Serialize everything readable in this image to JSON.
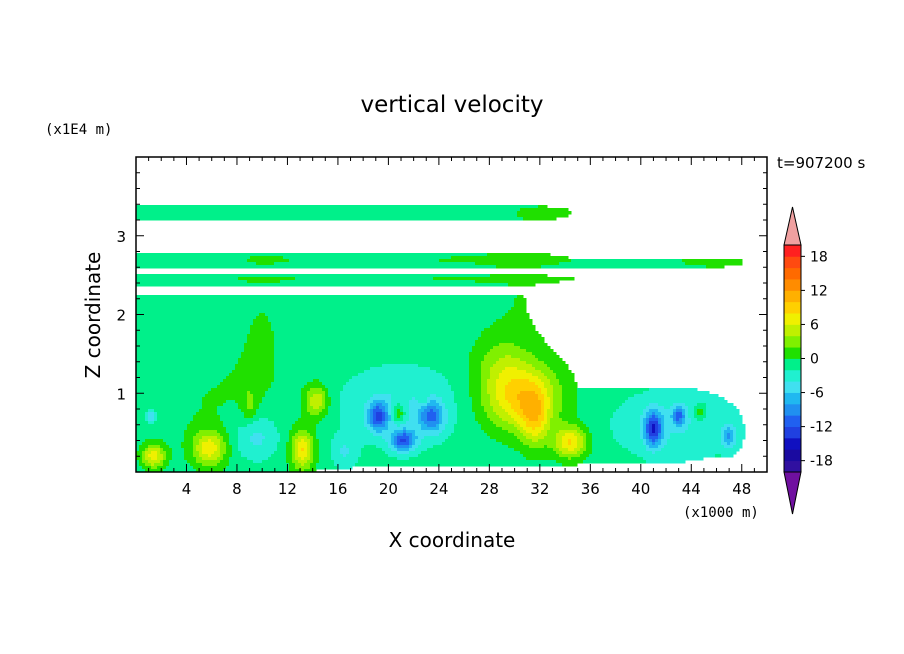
{
  "chart_data": {
    "type": "heatmap",
    "title": "vertical velocity",
    "xlabel": "X coordinate",
    "ylabel": "Z coordinate",
    "x_unit": "(x1000 m)",
    "y_unit": "(x1E4 m)",
    "time_label": "t=907200 s",
    "xlim": [
      0,
      50
    ],
    "ylim": [
      0,
      4
    ],
    "x_ticks": [
      4,
      8,
      12,
      16,
      20,
      24,
      28,
      32,
      36,
      40,
      44,
      48
    ],
    "x_tick_labels": [
      "4",
      "8",
      "12",
      "16",
      "20",
      "24",
      "28",
      "32",
      "36",
      "40",
      "44",
      "48"
    ],
    "y_ticks": [
      1,
      2,
      3
    ],
    "y_tick_labels": [
      "1",
      "2",
      "3"
    ],
    "colorbar": {
      "min": -20,
      "max": 20,
      "step": 2,
      "tick_values": [
        18,
        12,
        6,
        0,
        -6,
        -12,
        -18
      ],
      "tick_labels": [
        "18",
        "12",
        "6",
        "0",
        "-6",
        "-12",
        "-18"
      ],
      "colors_high_to_low": [
        "#f0a0a0",
        "#ff2020",
        "#ff4a10",
        "#ff6a00",
        "#ff8c00",
        "#ffb000",
        "#ffd000",
        "#f0f000",
        "#c0f000",
        "#80f000",
        "#20e000",
        "#00f08a",
        "#20f0d0",
        "#40e0f0",
        "#20b8f0",
        "#2090f0",
        "#2060f0",
        "#2040e0",
        "#1010c0",
        "#1a0aa0",
        "#3010a0",
        "#7010a0"
      ]
    },
    "background_value": -1,
    "blobs": [
      {
        "x": 30.5,
        "z": 0.95,
        "sx": 3.0,
        "sz": 0.42,
        "v": 10
      },
      {
        "x": 31.6,
        "z": 0.65,
        "sx": 1.1,
        "sz": 0.35,
        "v": 6
      },
      {
        "x": 34.4,
        "z": 0.38,
        "sx": 1.3,
        "sz": 0.2,
        "v": 9
      },
      {
        "x": 29.0,
        "z": 1.4,
        "sx": 2.2,
        "sz": 0.35,
        "v": 3
      },
      {
        "x": 1.4,
        "z": 0.2,
        "sx": 0.9,
        "sz": 0.15,
        "v": 8
      },
      {
        "x": 5.8,
        "z": 0.3,
        "sx": 1.3,
        "sz": 0.22,
        "v": 8
      },
      {
        "x": 13.2,
        "z": 0.28,
        "sx": 0.9,
        "sz": 0.25,
        "v": 9
      },
      {
        "x": 14.3,
        "z": 0.9,
        "sx": 0.9,
        "sz": 0.2,
        "v": 7
      },
      {
        "x": 9.0,
        "z": 0.85,
        "sx": 0.6,
        "sz": 0.25,
        "v": 3
      },
      {
        "x": 20.8,
        "z": 0.75,
        "sx": 0.5,
        "sz": 0.12,
        "v": 5
      },
      {
        "x": 22.8,
        "z": 0.92,
        "sx": 0.4,
        "sz": 0.1,
        "v": 3
      },
      {
        "x": 19.2,
        "z": 0.7,
        "sx": 0.8,
        "sz": 0.18,
        "v": -10
      },
      {
        "x": 21.2,
        "z": 0.4,
        "sx": 1.0,
        "sz": 0.14,
        "v": -10
      },
      {
        "x": 23.4,
        "z": 0.7,
        "sx": 1.0,
        "sz": 0.2,
        "v": -8
      },
      {
        "x": 21.0,
        "z": 0.85,
        "sx": 5.0,
        "sz": 0.5,
        "v": -3
      },
      {
        "x": 9.5,
        "z": 0.45,
        "sx": 1.8,
        "sz": 0.3,
        "v": -4
      },
      {
        "x": 41.0,
        "z": 0.55,
        "sx": 0.7,
        "sz": 0.22,
        "v": -11
      },
      {
        "x": 43.0,
        "z": 0.72,
        "sx": 0.5,
        "sz": 0.12,
        "v": -8
      },
      {
        "x": 44.7,
        "z": 0.75,
        "sx": 0.5,
        "sz": 0.1,
        "v": 4
      },
      {
        "x": 47.0,
        "z": 0.45,
        "sx": 0.6,
        "sz": 0.15,
        "v": -6
      },
      {
        "x": 42.8,
        "z": 0.6,
        "sx": 5.0,
        "sz": 0.45,
        "v": -3
      },
      {
        "x": 1.2,
        "z": 0.7,
        "sx": 0.4,
        "sz": 0.1,
        "v": -5
      },
      {
        "x": 16.5,
        "z": 0.25,
        "sx": 1.0,
        "sz": 0.2,
        "v": -3
      },
      {
        "x": 33.0,
        "z": 3.3,
        "sx": 7.0,
        "sz": 0.25,
        "v": 1
      },
      {
        "x": 24.0,
        "z": 2.7,
        "sx": 24.0,
        "sz": 0.1,
        "v": 1
      },
      {
        "x": 24.0,
        "z": 2.45,
        "sx": 24.0,
        "sz": 0.05,
        "v": 1
      },
      {
        "x": 30.5,
        "z": 2.2,
        "sx": 3.5,
        "sz": 0.8,
        "v": 1
      },
      {
        "x": 10.0,
        "z": 1.8,
        "sx": 2.5,
        "sz": 1.0,
        "v": 1
      },
      {
        "x": 6.0,
        "z": 0.9,
        "sx": 6.0,
        "sz": 0.7,
        "v": 1
      },
      {
        "x": 46.0,
        "z": 2.65,
        "sx": 3.5,
        "sz": 0.1,
        "v": 1
      }
    ]
  }
}
